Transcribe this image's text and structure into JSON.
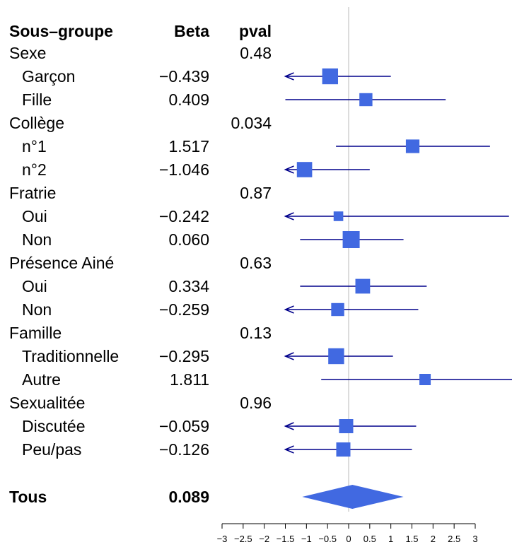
{
  "chart_data": {
    "type": "forest",
    "headers": {
      "subgroup": "Sous–groupe",
      "beta": "Beta",
      "pval": "pval"
    },
    "xlim": [
      -3,
      3
    ],
    "x_ticks": [
      -3,
      -2.5,
      -2,
      -1.5,
      -1,
      -0.5,
      0,
      0.5,
      1,
      1.5,
      2,
      2.5,
      3
    ],
    "x_tick_labels": [
      "−3",
      "−2.5",
      "−2",
      "−1.5",
      "−1",
      "−0.5",
      "0",
      "0.5",
      "1",
      "1.5",
      "2",
      "2.5",
      "3"
    ],
    "reference_line": 0,
    "rows": [
      {
        "label": "Sexe",
        "kind": "group",
        "pval": "0.48"
      },
      {
        "label": "Garçon",
        "kind": "item",
        "beta": "−0.439",
        "est": -0.439,
        "lo": -1.5,
        "hi": 1.0,
        "lo_arrow": true,
        "hi_arrow": false,
        "weight": 0.9
      },
      {
        "label": "Fille",
        "kind": "item",
        "beta": "0.409",
        "est": 0.409,
        "lo": -1.5,
        "hi": 2.3,
        "lo_arrow": false,
        "hi_arrow": false,
        "weight": 0.65
      },
      {
        "label": "Collège",
        "kind": "group",
        "pval": "0.034"
      },
      {
        "label": "n°1",
        "kind": "item",
        "beta": "1.517",
        "est": 1.517,
        "lo": -0.3,
        "hi": 3.35,
        "lo_arrow": false,
        "hi_arrow": false,
        "weight": 0.7
      },
      {
        "label": "n°2",
        "kind": "item",
        "beta": "−1.046",
        "est": -1.046,
        "lo": -1.5,
        "hi": 0.5,
        "lo_arrow": true,
        "hi_arrow": false,
        "weight": 0.85
      },
      {
        "label": "Fratrie",
        "kind": "group",
        "pval": "0.87"
      },
      {
        "label": "Oui",
        "kind": "item",
        "beta": "−0.242",
        "est": -0.242,
        "lo": -1.5,
        "hi": 3.8,
        "lo_arrow": true,
        "hi_arrow": false,
        "weight": 0.35
      },
      {
        "label": "Non",
        "kind": "item",
        "beta": "0.060",
        "est": 0.06,
        "lo": -1.15,
        "hi": 1.3,
        "lo_arrow": false,
        "hi_arrow": false,
        "weight": 1.0
      },
      {
        "label": "Présence Ainé",
        "kind": "group",
        "pval": "0.63"
      },
      {
        "label": "Oui",
        "kind": "item",
        "beta": "0.334",
        "est": 0.334,
        "lo": -1.15,
        "hi": 1.85,
        "lo_arrow": false,
        "hi_arrow": false,
        "weight": 0.8
      },
      {
        "label": "Non",
        "kind": "item",
        "beta": "−0.259",
        "est": -0.259,
        "lo": -1.5,
        "hi": 1.65,
        "lo_arrow": true,
        "hi_arrow": false,
        "weight": 0.65
      },
      {
        "label": "Famille",
        "kind": "group",
        "pval": "0.13"
      },
      {
        "label": "Traditionnelle",
        "kind": "item",
        "beta": "−0.295",
        "est": -0.295,
        "lo": -1.5,
        "hi": 1.05,
        "lo_arrow": true,
        "hi_arrow": false,
        "weight": 0.9
      },
      {
        "label": "Autre",
        "kind": "item",
        "beta": "1.811",
        "est": 1.811,
        "lo": -0.65,
        "hi": 3.9,
        "lo_arrow": false,
        "hi_arrow": false,
        "weight": 0.5
      },
      {
        "label": "Sexualitée",
        "kind": "group",
        "pval": "0.96"
      },
      {
        "label": "Discutée",
        "kind": "item",
        "beta": "−0.059",
        "est": -0.059,
        "lo": -1.5,
        "hi": 1.6,
        "lo_arrow": true,
        "hi_arrow": false,
        "weight": 0.75
      },
      {
        "label": "Peu/pas",
        "kind": "item",
        "beta": "−0.126",
        "est": -0.126,
        "lo": -1.5,
        "hi": 1.5,
        "lo_arrow": true,
        "hi_arrow": false,
        "weight": 0.75
      }
    ],
    "overall": {
      "label": "Tous",
      "beta": "0.089",
      "est": 0.089,
      "lo": -1.1,
      "hi": 1.3
    },
    "colors": {
      "box": "#4169E1",
      "line": "#00008B",
      "ref": "#d0d0d0",
      "text": "#000000"
    }
  }
}
